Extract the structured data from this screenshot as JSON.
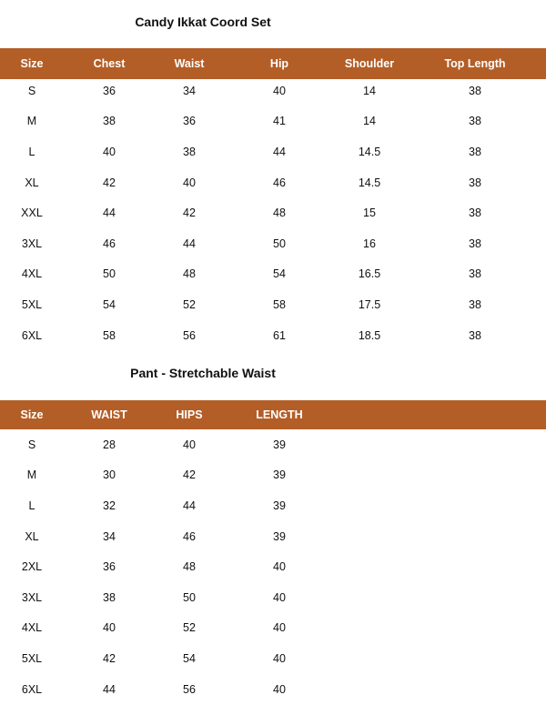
{
  "top": {
    "title": "Candy Ikkat Coord Set",
    "header_color": "#b35e27",
    "columns": [
      "Size",
      "Chest",
      "Waist",
      "Hip",
      "Shoulder",
      "Top Length"
    ],
    "rows": [
      [
        "S",
        "36",
        "34",
        "40",
        "14",
        "38"
      ],
      [
        "M",
        "38",
        "36",
        "41",
        "14",
        "38"
      ],
      [
        "L",
        "40",
        "38",
        "44",
        "14.5",
        "38"
      ],
      [
        "XL",
        "42",
        "40",
        "46",
        "14.5",
        "38"
      ],
      [
        "XXL",
        "44",
        "42",
        "48",
        "15",
        "38"
      ],
      [
        "3XL",
        "46",
        "44",
        "50",
        "16",
        "38"
      ],
      [
        "4XL",
        "50",
        "48",
        "54",
        "16.5",
        "38"
      ],
      [
        "5XL",
        "54",
        "52",
        "58",
        "17.5",
        "38"
      ],
      [
        "6XL",
        "58",
        "56",
        "61",
        "18.5",
        "38"
      ]
    ]
  },
  "pant": {
    "title": "Pant - Stretchable Waist",
    "columns": [
      "Size",
      "WAIST",
      "HIPS",
      "LENGTH"
    ],
    "rows": [
      [
        "S",
        "28",
        "40",
        "39"
      ],
      [
        "M",
        "30",
        "42",
        "39"
      ],
      [
        "L",
        "32",
        "44",
        "39"
      ],
      [
        "XL",
        "34",
        "46",
        "39"
      ],
      [
        "2XL",
        "36",
        "48",
        "40"
      ],
      [
        "3XL",
        "38",
        "50",
        "40"
      ],
      [
        "4XL",
        "40",
        "52",
        "40"
      ],
      [
        "5XL",
        "42",
        "54",
        "40"
      ],
      [
        "6XL",
        "44",
        "56",
        "40"
      ]
    ]
  }
}
